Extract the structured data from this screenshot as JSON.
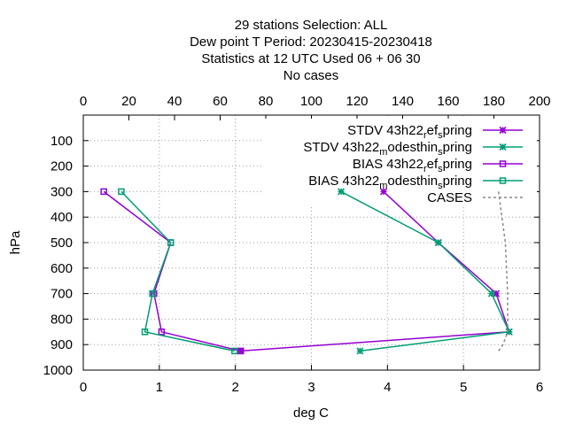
{
  "chart_data": {
    "type": "line",
    "title_lines": [
      "29 stations Selection: ALL",
      "Dew point T  Period: 20230415-20230418",
      "Statistics at 12 UTC  Used  06  + 06 30",
      "No cases"
    ],
    "xlabel": "deg C",
    "ylabel": "hPa",
    "xlim": [
      0,
      6
    ],
    "x2lim": [
      0,
      200
    ],
    "ylim": [
      1000,
      0
    ],
    "x_ticks": [
      "0",
      "1",
      "2",
      "3",
      "4",
      "5",
      "6"
    ],
    "x2_ticks": [
      "0",
      "20",
      "40",
      "60",
      "80",
      "100",
      "120",
      "140",
      "160",
      "180",
      "200"
    ],
    "y_ticks": [
      "100",
      "200",
      "300",
      "400",
      "500",
      "600",
      "700",
      "800",
      "900",
      "1000"
    ],
    "grid": true,
    "legend_position": "top-right",
    "series": [
      {
        "legend": {
          "main": "STDV 43h22",
          "sub1": "r",
          "mid": "ef",
          "sub2": "s",
          "tail": "pring"
        },
        "color": "#9400d3",
        "marker": "star",
        "axis": "x",
        "x": [
          3.95,
          4.67,
          5.43,
          5.6,
          2.07
        ],
        "y": [
          300,
          500,
          700,
          850,
          925
        ]
      },
      {
        "legend": {
          "main": "STDV 43h22",
          "sub1": "m",
          "mid": "odesthin",
          "sub2": "s",
          "tail": "pring"
        },
        "color": "#009e73",
        "marker": "star",
        "axis": "x",
        "x": [
          3.39,
          4.67,
          5.37,
          5.6,
          3.64
        ],
        "y": [
          300,
          500,
          700,
          850,
          925
        ]
      },
      {
        "legend": {
          "main": "BIAS 43h22",
          "sub1": "r",
          "mid": "ef",
          "sub2": "s",
          "tail": "pring"
        },
        "color": "#9400d3",
        "marker": "square",
        "axis": "x",
        "x": [
          0.27,
          1.15,
          0.93,
          1.03,
          2.07
        ],
        "y": [
          300,
          500,
          700,
          850,
          925
        ]
      },
      {
        "legend": {
          "main": "BIAS 43h22",
          "sub1": "m",
          "mid": "odesthin",
          "sub2": "s",
          "tail": "pring"
        },
        "color": "#009e73",
        "marker": "square",
        "axis": "x",
        "x": [
          0.5,
          1.15,
          0.91,
          0.81,
          1.99
        ],
        "y": [
          300,
          500,
          700,
          850,
          925
        ]
      },
      {
        "legend": {
          "main": "CASES",
          "sub1": "",
          "mid": "",
          "sub2": "",
          "tail": ""
        },
        "color": "#888888",
        "marker": "dash",
        "axis": "x2",
        "x": [
          182,
          185,
          186,
          186,
          184,
          182
        ],
        "y": [
          300,
          500,
          700,
          850,
          900,
          925
        ]
      }
    ]
  }
}
